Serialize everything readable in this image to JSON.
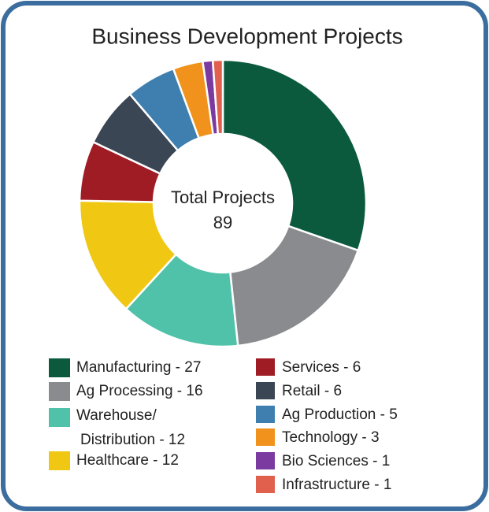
{
  "chart_data": {
    "type": "donut",
    "title": "Business Development Projects",
    "center_label": "Total Projects",
    "total": 89,
    "categories": [
      "Manufacturing",
      "Ag Processing",
      "Warehouse/ Distribution",
      "Healthcare",
      "Services",
      "Retail",
      "Ag Production",
      "Technology",
      "Bio Sciences",
      "Infrastructure"
    ],
    "values": [
      27,
      16,
      12,
      12,
      6,
      6,
      5,
      3,
      1,
      1
    ],
    "value_labels": [
      "Manufacturing - 27",
      "Ag Processing - 16",
      "Warehouse/ Distribution - 12",
      "Healthcare - 12",
      "Services  - 6",
      "Retail - 6",
      "Ag Production - 5",
      "Technology - 3",
      "Bio Sciences - 1",
      "Infrastructure - 1"
    ],
    "colors": [
      "#0b5a3e",
      "#8a8b8e",
      "#4fc2a9",
      "#f0c814",
      "#a01c24",
      "#3b4654",
      "#3f7fb0",
      "#f0921c",
      "#7b3aa0",
      "#e0604d"
    ]
  }
}
